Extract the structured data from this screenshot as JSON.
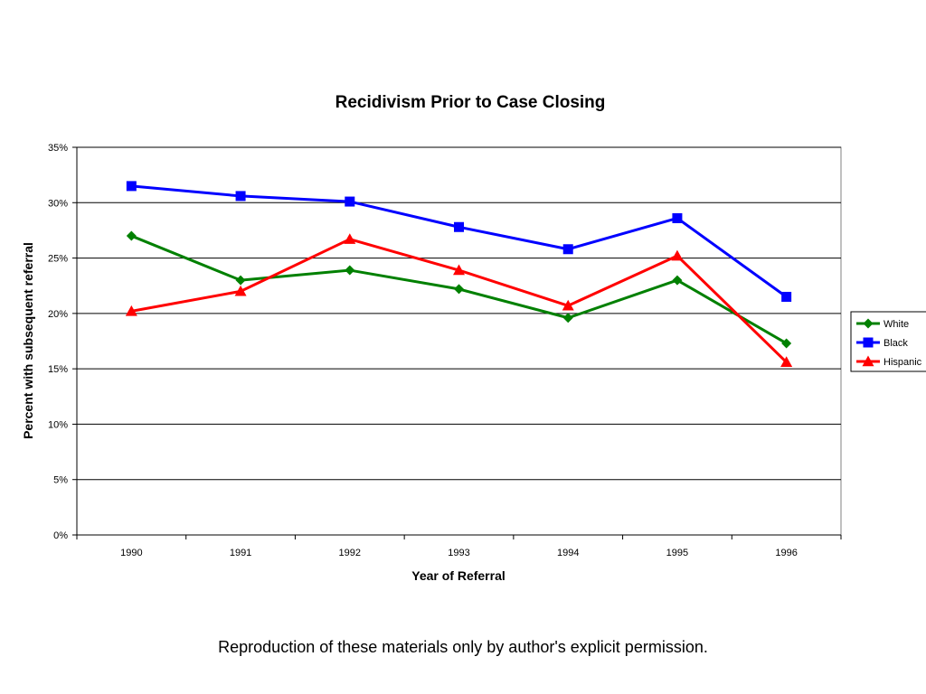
{
  "chart_data": {
    "type": "line",
    "title": "Recidivism Prior to Case Closing",
    "xlabel": "Year of Referral",
    "ylabel": "Percent with subsequent referral",
    "categories": [
      "1990",
      "1991",
      "1992",
      "1993",
      "1994",
      "1995",
      "1996"
    ],
    "yticks": [
      "0%",
      "5%",
      "10%",
      "15%",
      "20%",
      "25%",
      "30%",
      "35%"
    ],
    "ylim": [
      0,
      0.35
    ],
    "grid": true,
    "legend_position": "right",
    "series": [
      {
        "name": "White",
        "color": "#008000",
        "marker": "diamond",
        "values": [
          0.27,
          0.23,
          0.239,
          0.222,
          0.196,
          0.23,
          0.173
        ]
      },
      {
        "name": "Black",
        "color": "#0000ff",
        "marker": "square",
        "values": [
          0.315,
          0.306,
          0.301,
          0.278,
          0.258,
          0.286,
          0.215
        ]
      },
      {
        "name": "Hispanic",
        "color": "#ff0000",
        "marker": "triangle",
        "values": [
          0.202,
          0.22,
          0.267,
          0.239,
          0.207,
          0.252,
          0.156
        ]
      }
    ]
  },
  "footer": "Reproduction of these materials only by author's explicit permission."
}
